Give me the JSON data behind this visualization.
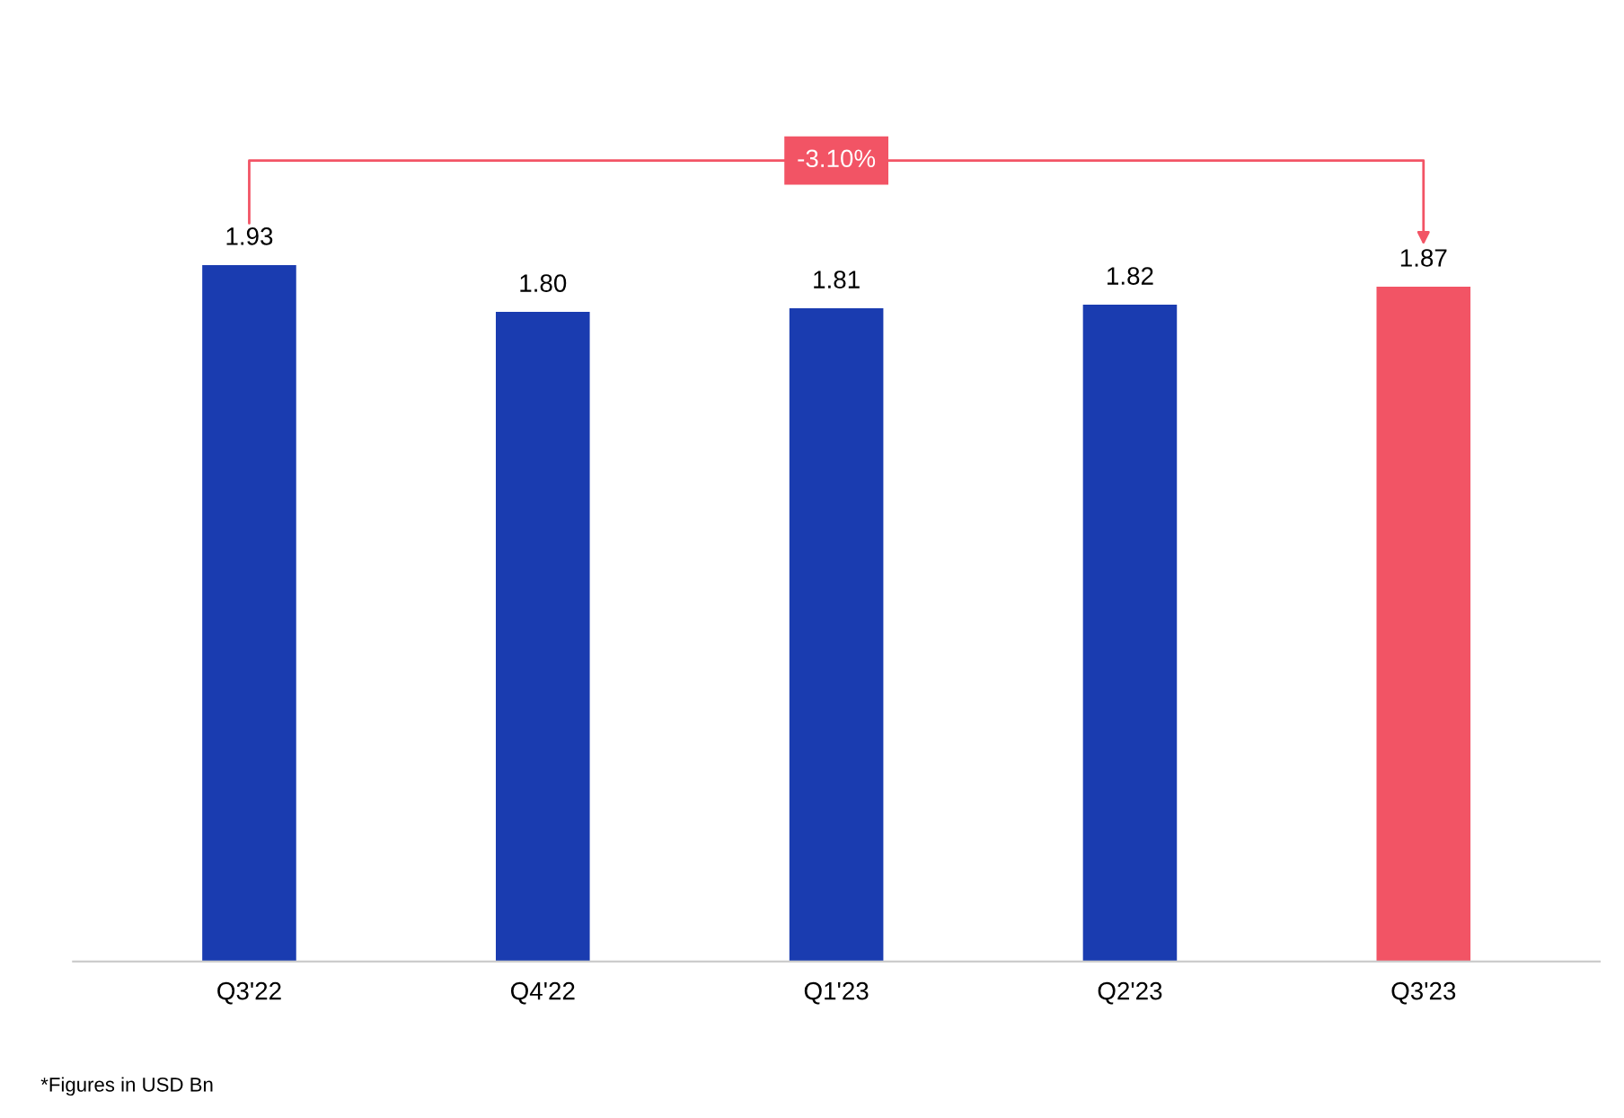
{
  "chart_data": {
    "type": "bar",
    "categories": [
      "Q3'22",
      "Q4'22",
      "Q1'23",
      "Q2'23",
      "Q3'23"
    ],
    "values": [
      1.93,
      1.8,
      1.81,
      1.82,
      1.87
    ],
    "colors": [
      "#1a3cb0",
      "#1a3cb0",
      "#1a3cb0",
      "#1a3cb0",
      "#f25465"
    ],
    "value_labels": [
      "1.93",
      "1.80",
      "1.81",
      "1.82",
      "1.87"
    ],
    "annotations": [
      "-3.10%",
      "*Figures in USD Bn"
    ]
  }
}
